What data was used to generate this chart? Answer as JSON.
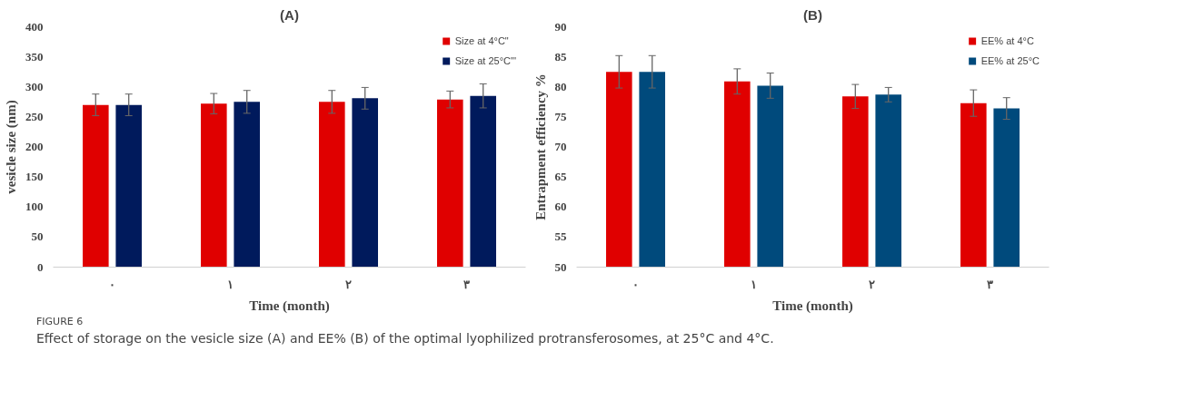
{
  "chart_data": [
    {
      "type": "bar",
      "title": "(A)",
      "xlabel": "Time (month)",
      "ylabel": "vesicle size (nm)",
      "categories": [
        "٠",
        "١",
        "٢",
        "٣"
      ],
      "ylim": [
        0,
        400
      ],
      "yticks": [
        0,
        50,
        100,
        150,
        200,
        250,
        300,
        350,
        400
      ],
      "legend": "top right",
      "grid": false,
      "series": [
        {
          "name": "Size at 4°C\"",
          "color": "#e00000",
          "values": [
            270,
            272,
            275,
            279
          ],
          "errors": [
            18,
            17,
            19,
            14
          ]
        },
        {
          "name": "Size at 25°C\"'",
          "color": "#001a5c",
          "values": [
            270,
            275,
            281,
            285
          ],
          "errors": [
            18,
            19,
            18,
            20
          ]
        }
      ],
      "annotations": [
        "FIGURE 6",
        "Effect of storage on the vesicle size (A) and EE% (B) of the optimal lyophilized protransferosomes, at 25°C and 4°C."
      ]
    },
    {
      "type": "bar",
      "title": "(B)",
      "xlabel": "Time (month)",
      "ylabel": "Entrapment efficiency %",
      "categories": [
        "٠",
        "١",
        "٢",
        "٣"
      ],
      "ylim": [
        50,
        90
      ],
      "yticks": [
        50,
        55,
        60,
        65,
        70,
        75,
        80,
        85,
        90
      ],
      "legend": "top right",
      "grid": false,
      "series": [
        {
          "name": "EE% at 4°C",
          "color": "#e00000",
          "values": [
            82.5,
            80.9,
            78.4,
            77.3
          ],
          "errors": [
            2.7,
            2.1,
            2.0,
            2.2
          ]
        },
        {
          "name": "EE% at 25°C",
          "color": "#004a7c",
          "values": [
            82.5,
            80.2,
            78.7,
            76.4
          ],
          "errors": [
            2.7,
            2.1,
            1.2,
            1.8
          ]
        }
      ]
    }
  ]
}
